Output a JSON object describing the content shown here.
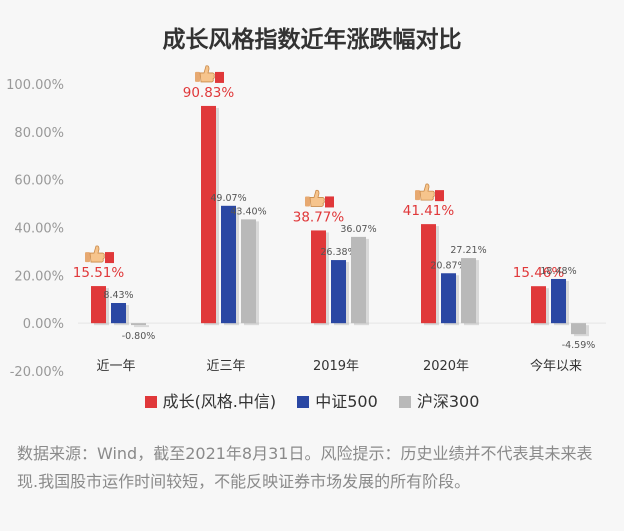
{
  "title": "成长风格指数近年涨跌幅对比",
  "colors": {
    "series": [
      "#e0383a",
      "#2a47a3",
      "#b9b9b9"
    ],
    "highlight": "#e0383a"
  },
  "legend": [
    "成长(风格.中信)",
    "中证500",
    "沪深300"
  ],
  "footnote": "数据来源：Wind，截至2021年8月31日。风险提示：历史业绩并不代表其未来表现.我国股市运作时间较短，不能反映证券市场发展的所有阶段。",
  "chart_data": {
    "type": "bar",
    "categories": [
      "近一年",
      "近三年",
      "2019年",
      "2020年",
      "今年以来"
    ],
    "series": [
      {
        "name": "成长(风格.中信)",
        "values": [
          15.51,
          90.83,
          38.77,
          41.41,
          15.46
        ],
        "labels": [
          "15.51%",
          "90.83%",
          "38.77%",
          "41.41%",
          "15.46%"
        ]
      },
      {
        "name": "中证500",
        "values": [
          8.43,
          49.07,
          26.38,
          20.87,
          18.48
        ],
        "labels": [
          "8.43%",
          "49.07%",
          "26.38%",
          "20.87%",
          "18.48%"
        ]
      },
      {
        "name": "沪深300",
        "values": [
          -0.8,
          43.4,
          36.07,
          27.21,
          -4.59
        ],
        "labels": [
          "-0.80%",
          "43.40%",
          "36.07%",
          "27.21%",
          "-4.59%"
        ]
      }
    ],
    "yticks": [
      "100.00%",
      "80.00%",
      "60.00%",
      "40.00%",
      "20.00%",
      "0.00%",
      "-20.00%"
    ],
    "ylim": [
      -20,
      100
    ],
    "thumbs_up_on": [
      0,
      1,
      2,
      3
    ],
    "grid": false,
    "legend_position": "bottom"
  }
}
